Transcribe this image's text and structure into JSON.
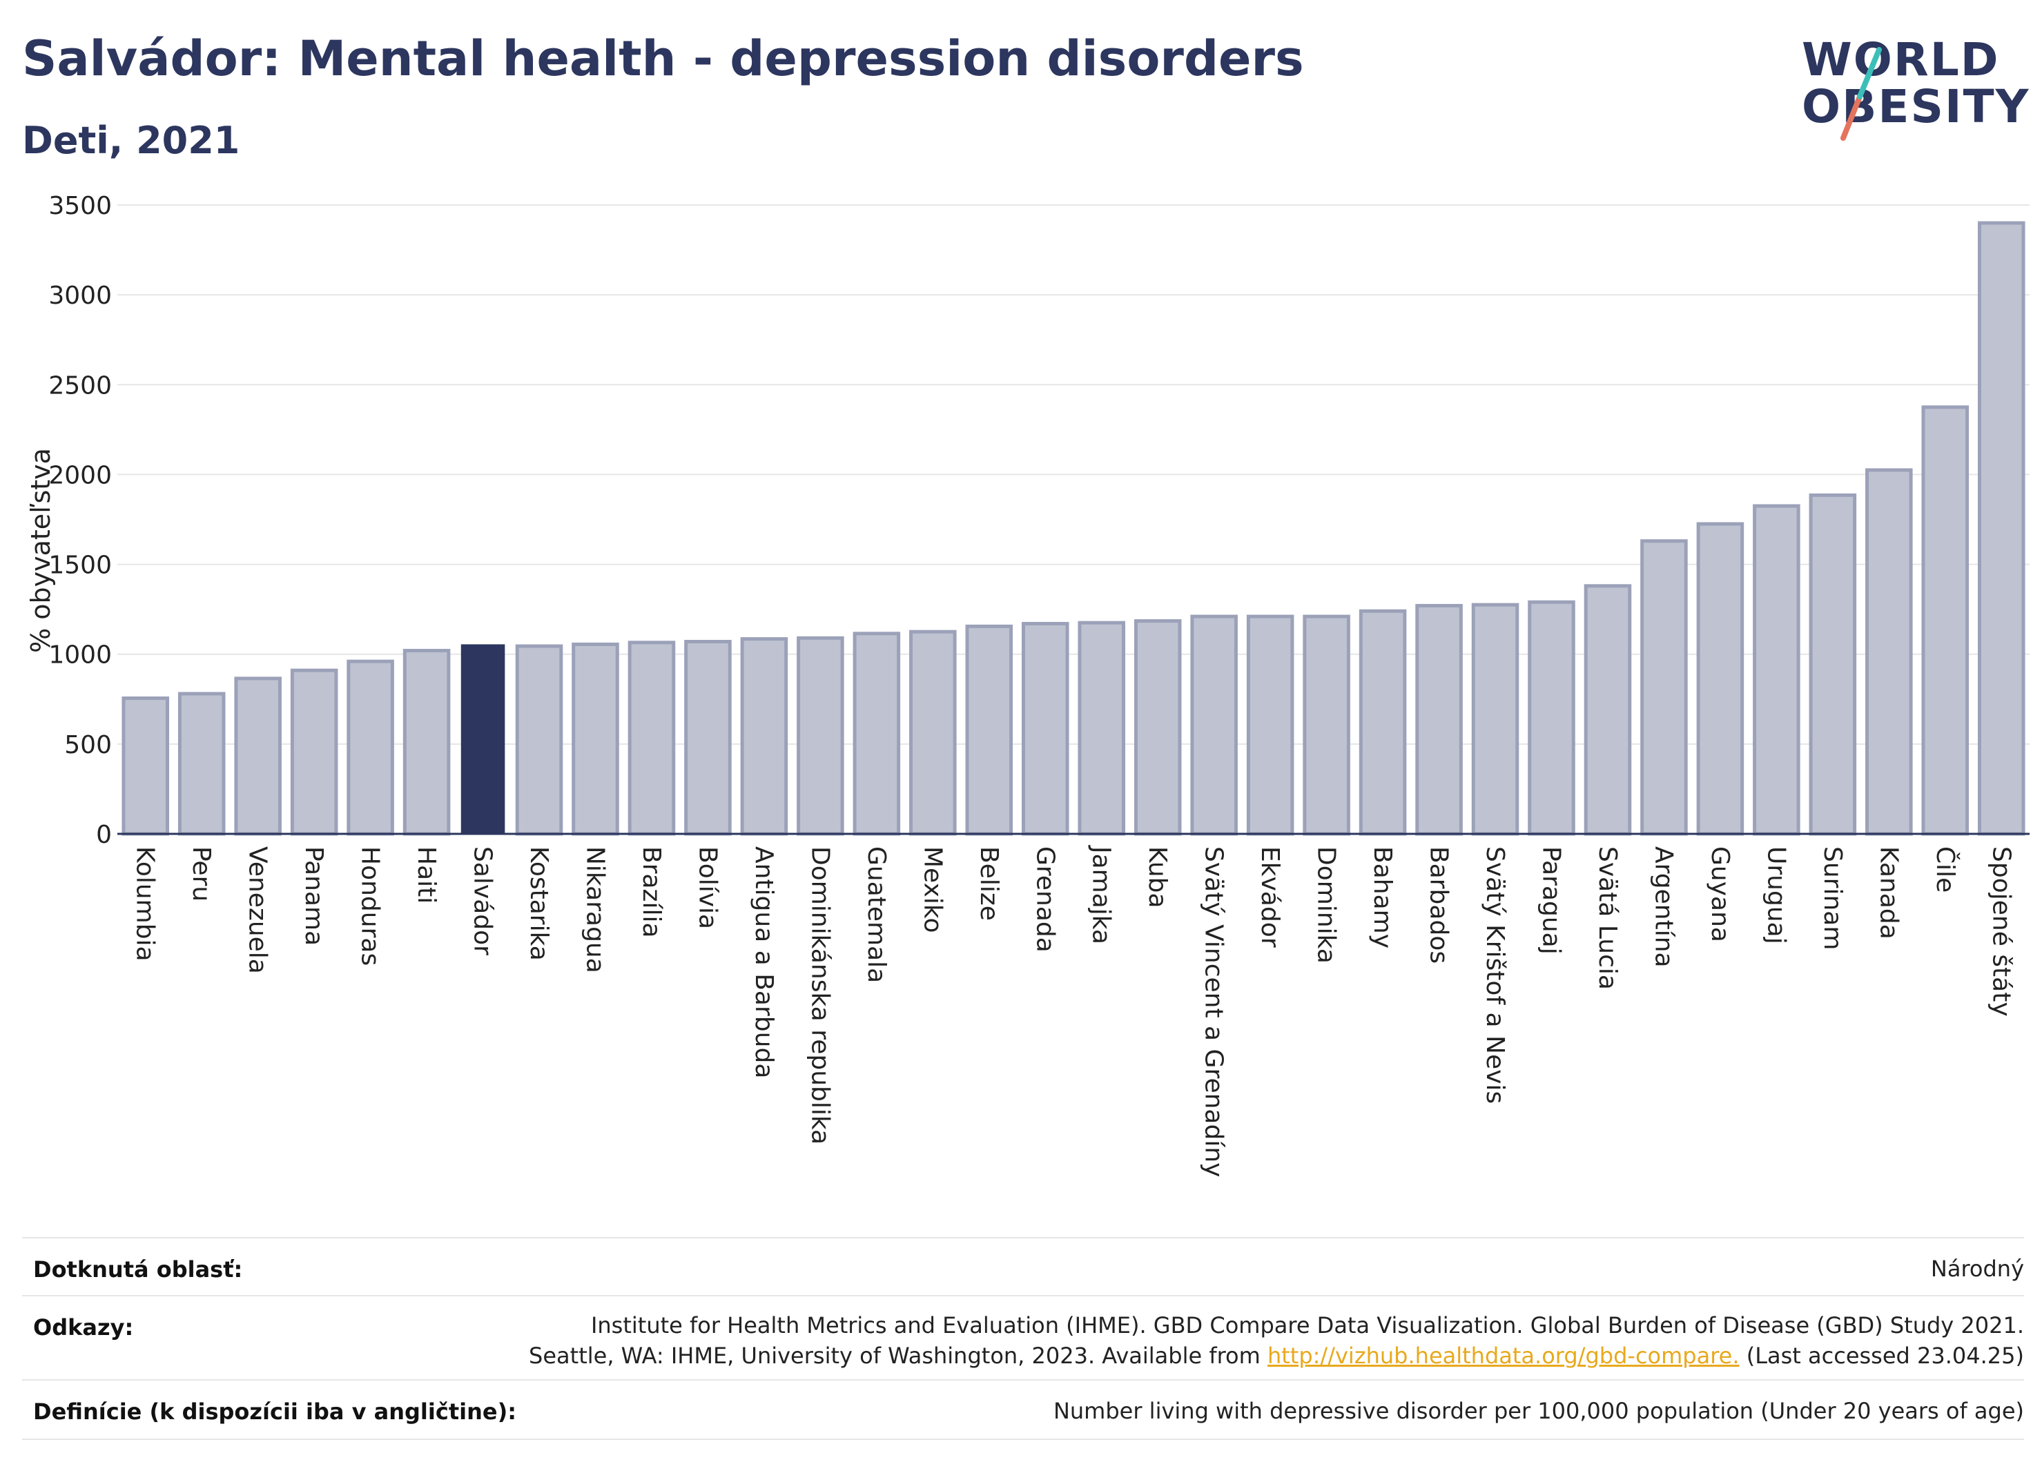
{
  "header": {
    "title": "Salvádor: Mental health - depression disorders",
    "subtitle": "Deti, 2021"
  },
  "logo": {
    "line1": "WORLD",
    "line2": "OBESITY",
    "accent_colors": [
      "#3bbfb8",
      "#e4745e"
    ]
  },
  "colors": {
    "highlight": "#2c365e",
    "bar": "#bfc3d1",
    "bar_border": "#9ba1b8",
    "axis": "#2c365e",
    "grid": "#e6e6e6",
    "link": "#e8a91d"
  },
  "chart_data": {
    "type": "bar",
    "ylabel": "% obyvateľstva",
    "ylim": [
      0,
      3500
    ],
    "yticks": [
      0,
      500,
      1000,
      1500,
      2000,
      2500,
      3000,
      3500
    ],
    "highlight": "Salvádor",
    "categories": [
      "Kolumbia",
      "Peru",
      "Venezuela",
      "Panama",
      "Honduras",
      "Haiti",
      "Salvádor",
      "Kostarika",
      "Nikaragua",
      "Brazília",
      "Bolívia",
      "Antigua a Barbuda",
      "Dominikánska republika",
      "Guatemala",
      "Mexiko",
      "Belize",
      "Grenada",
      "Jamajka",
      "Kuba",
      "Svätý Vincent a Grenadíny",
      "Ekvádor",
      "Dominika",
      "Bahamy",
      "Barbados",
      "Svätý Krištof a Nevis",
      "Paraguaj",
      "Svätá Lucia",
      "Argentína",
      "Guyana",
      "Uruguaj",
      "Surinam",
      "Kanada",
      "Čile",
      "Spojené štáty"
    ],
    "values": [
      755,
      780,
      865,
      910,
      960,
      1020,
      1055,
      1045,
      1055,
      1065,
      1070,
      1085,
      1090,
      1115,
      1125,
      1155,
      1170,
      1175,
      1185,
      1210,
      1210,
      1210,
      1240,
      1270,
      1275,
      1290,
      1380,
      1630,
      1725,
      1825,
      1885,
      2025,
      2375,
      3400
    ],
    "grid": true
  },
  "meta": {
    "area_label": "Dotknutá oblasť:",
    "area_value": "Národný",
    "refs_label": "Odkazy:",
    "refs_line1": "Institute for Health Metrics and Evaluation (IHME). GBD Compare Data Visualization. Global Burden of Disease (GBD) Study 2021.",
    "refs_line2_pre": "Seattle, WA: IHME, University of Washington, 2023. Available from ",
    "refs_link": "http://vizhub.healthdata.org/gbd-compare.",
    "refs_line2_post": " (Last accessed 23.04.25)",
    "def_label": "Definície (k dispozícii iba v angličtine):",
    "def_value": "Number living with depressive disorder per 100,000 population (Under 20 years of age)"
  }
}
